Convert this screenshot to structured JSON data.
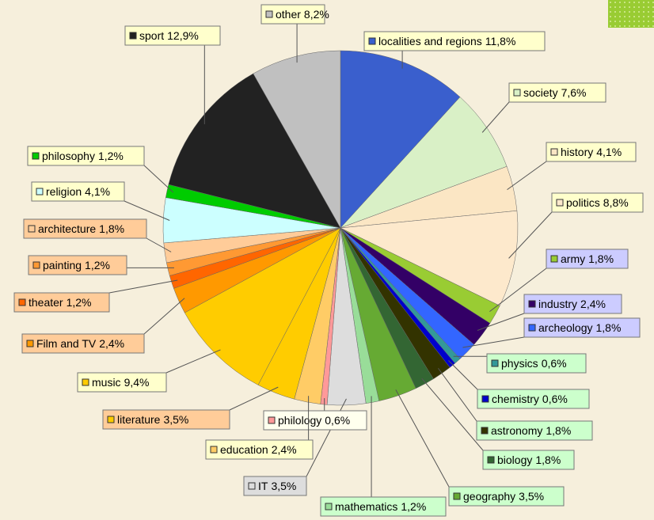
{
  "chart_data": {
    "type": "pie",
    "categories": [
      "localities and regions",
      "society",
      "history",
      "politics",
      "army",
      "industry",
      "archeology",
      "physics",
      "chemistry",
      "astronomy",
      "biology",
      "geography",
      "mathematics",
      "IT",
      "philology",
      "education",
      "literature",
      "music",
      "Film and TV",
      "theater",
      "painting",
      "architecture",
      "religion",
      "philosophy",
      "sport",
      "other"
    ],
    "values": [
      11.8,
      7.6,
      4.1,
      8.8,
      1.8,
      2.4,
      1.8,
      0.6,
      0.6,
      1.8,
      1.8,
      3.5,
      1.2,
      3.5,
      0.6,
      2.4,
      3.5,
      9.4,
      2.4,
      1.2,
      1.2,
      1.8,
      4.1,
      1.2,
      12.9,
      8.2
    ],
    "value_labels": [
      "11,8%",
      "7,6%",
      "4,1%",
      "8,8%",
      "1,8%",
      "2,4%",
      "1,8%",
      "0,6%",
      "0,6%",
      "1,8%",
      "1,8%",
      "3,5%",
      "1,2%",
      "3,5%",
      "0,6%",
      "2,4%",
      "3,5%",
      "9,4%",
      "2,4%",
      "1,2%",
      "1,2%",
      "1,8%",
      "4,1%",
      "1,2%",
      "12,9%",
      "8,2%"
    ],
    "colors": [
      "#3a5fcd",
      "#d9f0c6",
      "#fbe6c4",
      "#fde9cc",
      "#99cc33",
      "#330066",
      "#3366ff",
      "#339999",
      "#0000cc",
      "#333300",
      "#336633",
      "#66aa33",
      "#99dd99",
      "#dddddd",
      "#ff9999",
      "#ffcc66",
      "#ffcc00",
      "#ffcc00",
      "#ff9900",
      "#ff6600",
      "#ff9933",
      "#ffcc99",
      "#ccffff",
      "#00cc00",
      "#222222",
      "#c0c0c0"
    ]
  }
}
